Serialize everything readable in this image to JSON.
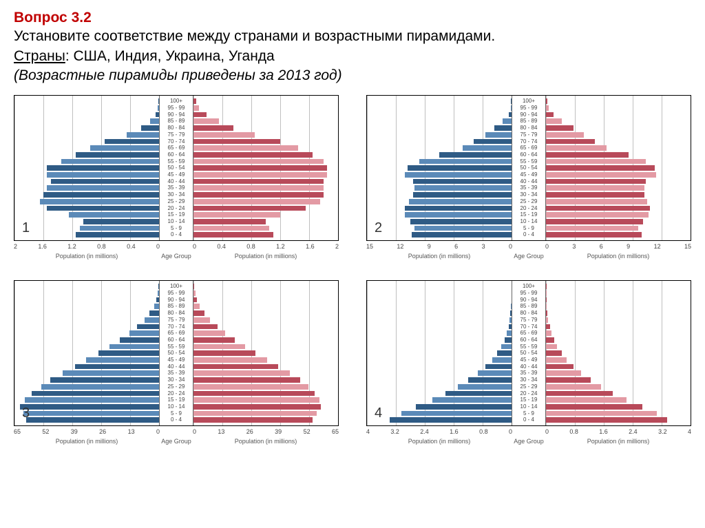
{
  "question": {
    "title": "Вопрос  3.2",
    "line1": "Установите соответствие между странами и возрастными пирамидами.",
    "countries_label": "Страны",
    "countries": ": США, Индия, Украина, Уганда",
    "note": "(Возрастные пирамиды приведены за 2013 год)"
  },
  "shared": {
    "age_labels": [
      "100+",
      "95 - 99",
      "90 - 94",
      "85 - 89",
      "80 - 84",
      "75 - 79",
      "70 - 74",
      "65 - 69",
      "60 - 64",
      "55 - 59",
      "50 - 54",
      "45 - 49",
      "40 - 44",
      "35 - 39",
      "30 - 34",
      "25 - 29",
      "20 - 24",
      "15 - 19",
      "10 - 14",
      "5 - 9",
      "0 - 4"
    ],
    "x_left_label": "Population (in millions)",
    "x_center_label": "Age Group",
    "x_right_label": "Population (in millions)",
    "male_colors": [
      "#2f5b85",
      "#5b8ab8"
    ],
    "female_colors": [
      "#b84a5a",
      "#e39aa4"
    ],
    "grid_color": "#bfbfbf",
    "border_color": "#000000",
    "bg": "#ffffff",
    "tick_font_size": 9,
    "age_font_size": 8,
    "bar_gap": 1
  },
  "pyramids": [
    {
      "id": "1",
      "x_ticks_left": [
        "2",
        "1.6",
        "1.2",
        "0.8",
        "0.4",
        "0"
      ],
      "x_ticks_right": [
        "0",
        "0.4",
        "0.8",
        "1.2",
        "1.6",
        "2"
      ],
      "x_max": 2,
      "male": [
        0.01,
        0.02,
        0.05,
        0.12,
        0.25,
        0.45,
        0.75,
        0.95,
        1.15,
        1.35,
        1.55,
        1.55,
        1.5,
        1.55,
        1.6,
        1.65,
        1.55,
        1.25,
        1.05,
        1.1,
        1.15
      ],
      "female": [
        0.04,
        0.08,
        0.18,
        0.35,
        0.55,
        0.85,
        1.2,
        1.45,
        1.65,
        1.8,
        1.85,
        1.85,
        1.8,
        1.8,
        1.8,
        1.75,
        1.55,
        1.2,
        1.0,
        1.05,
        1.1
      ]
    },
    {
      "id": "2",
      "x_ticks_left": [
        "15",
        "12",
        "9",
        "6",
        "3",
        "0"
      ],
      "x_ticks_right": [
        "0",
        "3",
        "6",
        "9",
        "12",
        "15"
      ],
      "x_max": 15,
      "male": [
        0.05,
        0.1,
        0.3,
        0.9,
        1.8,
        2.7,
        3.9,
        5.1,
        7.5,
        9.6,
        10.8,
        11.1,
        10.2,
        10.05,
        10.2,
        10.65,
        11.1,
        11.1,
        10.5,
        10.05,
        10.35
      ],
      "female": [
        0.15,
        0.3,
        0.75,
        1.65,
        2.85,
        3.9,
        5.1,
        6.3,
        8.55,
        10.35,
        11.25,
        11.4,
        10.35,
        10.2,
        10.2,
        10.5,
        10.8,
        10.65,
        10.05,
        9.6,
        9.9
      ]
    },
    {
      "id": "3",
      "x_ticks_left": [
        "65",
        "52",
        "39",
        "26",
        "13",
        "0"
      ],
      "x_ticks_right": [
        "0",
        "13",
        "26",
        "39",
        "52",
        "65"
      ],
      "x_max": 65,
      "male": [
        0.3,
        0.6,
        1.3,
        2.3,
        4.2,
        6.5,
        9.8,
        13.4,
        17.6,
        22.4,
        27.3,
        32.8,
        37.7,
        43.2,
        48.8,
        53.0,
        57.2,
        60.5,
        62.4,
        61.1,
        59.8
      ],
      "female": [
        0.4,
        0.8,
        1.6,
        2.9,
        5.0,
        7.5,
        10.7,
        14.3,
        18.5,
        23.1,
        28.0,
        33.2,
        38.0,
        43.2,
        48.1,
        51.7,
        54.6,
        56.6,
        57.2,
        55.3,
        53.6
      ]
    },
    {
      "id": "4",
      "x_ticks_left": [
        "4",
        "3.2",
        "2.4",
        "1.6",
        "0.8",
        "0"
      ],
      "x_ticks_right": [
        "0",
        "0.8",
        "1.6",
        "2.4",
        "3.2",
        "4"
      ],
      "x_max": 4,
      "male": [
        0.002,
        0.004,
        0.008,
        0.015,
        0.03,
        0.05,
        0.085,
        0.13,
        0.19,
        0.28,
        0.4,
        0.54,
        0.72,
        0.94,
        1.2,
        1.48,
        1.82,
        2.2,
        2.64,
        3.05,
        3.38
      ],
      "female": [
        0.003,
        0.006,
        0.012,
        0.022,
        0.04,
        0.065,
        0.105,
        0.155,
        0.22,
        0.31,
        0.43,
        0.57,
        0.76,
        0.98,
        1.24,
        1.52,
        1.85,
        2.23,
        2.66,
        3.06,
        3.36
      ]
    }
  ]
}
